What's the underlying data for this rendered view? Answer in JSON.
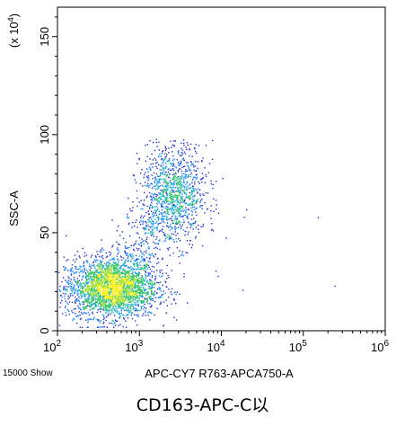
{
  "chart_data": {
    "type": "scatter",
    "subtype": "flow-cytometry density dot plot",
    "xlabel": "APC-CY7 R763-APCA750-A",
    "ylabel": "SSC-A",
    "yscale_label": "(x 10^4)",
    "x_scale": "log",
    "xlim": [
      100,
      1000000
    ],
    "ylim": [
      0,
      165
    ],
    "x_ticks": [
      {
        "value": 100,
        "base": "10",
        "exp": "2"
      },
      {
        "value": 1000,
        "base": "10",
        "exp": "3"
      },
      {
        "value": 10000,
        "base": "10",
        "exp": "4"
      },
      {
        "value": 100000,
        "base": "10",
        "exp": "5"
      },
      {
        "value": 1000000,
        "base": "10",
        "exp": "6"
      }
    ],
    "y_ticks": [
      {
        "value": 0,
        "label": "0"
      },
      {
        "value": 50,
        "label": "50"
      },
      {
        "value": 100,
        "label": "100"
      },
      {
        "value": 150,
        "label": "150"
      }
    ],
    "events_note": "15000 Show",
    "caption": "CD163-APC-C以",
    "populations": [
      {
        "name_hint": "low-SSC cluster",
        "x_center": 450,
        "y_center": 22,
        "count": 2600,
        "color_core": "#ffff33"
      },
      {
        "name_hint": "high-SSC cluster",
        "x_center": 2600,
        "y_center": 70,
        "count": 1100,
        "color_core": "#33ccdd"
      }
    ],
    "outliers": [
      {
        "x": 150000,
        "y": 58
      },
      {
        "x": 240000,
        "y": 23
      },
      {
        "x": 18000,
        "y": 21
      },
      {
        "x": 9000,
        "y": 28
      },
      {
        "x": 20000,
        "y": 62
      }
    ],
    "grid": false
  }
}
